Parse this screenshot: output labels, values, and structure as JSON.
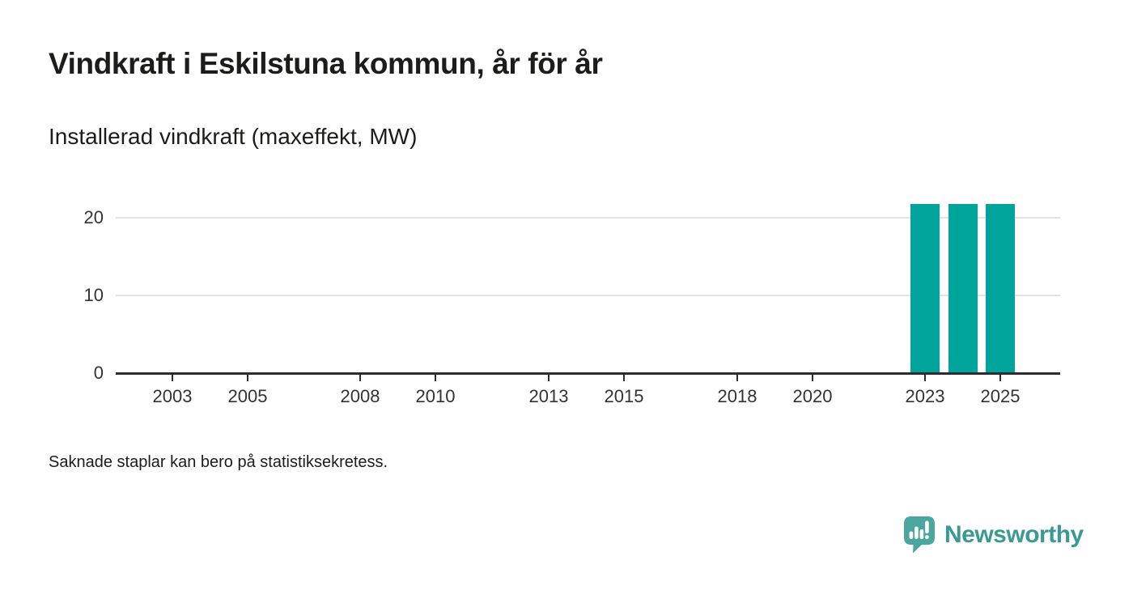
{
  "header": {
    "title": "Vindkraft i Eskilstuna kommun, år för år",
    "subtitle": "Installerad vindkraft (maxeffekt, MW)"
  },
  "chart_data": {
    "type": "bar",
    "title": "Vindkraft i Eskilstuna kommun, år för år",
    "subtitle": "Installerad vindkraft (maxeffekt, MW)",
    "ylabel": "Installerad vindkraft (maxeffekt, MW)",
    "unit": "MW",
    "x_domain": [
      2002,
      2026
    ],
    "xticks": [
      "2003",
      "2005",
      "2008",
      "2010",
      "2013",
      "2015",
      "2018",
      "2020",
      "2023",
      "2025"
    ],
    "yticks": [
      0,
      10,
      20
    ],
    "ylim": [
      0,
      23
    ],
    "bars": [
      {
        "year": 2023,
        "value": 21.7
      },
      {
        "year": 2024,
        "value": 21.7
      },
      {
        "year": 2025,
        "value": 21.7
      }
    ],
    "bar_color": "#00a49a",
    "grid": "horizontal-only",
    "legend": "none"
  },
  "footnote": "Saknade staplar kan bero på statistiksekretess.",
  "brand": {
    "name": "Newsworthy",
    "logo_icon": "bar-chart-speech-bubble-icon",
    "icon_color": "#4ba6a0",
    "text_color": "#3a9a93"
  }
}
